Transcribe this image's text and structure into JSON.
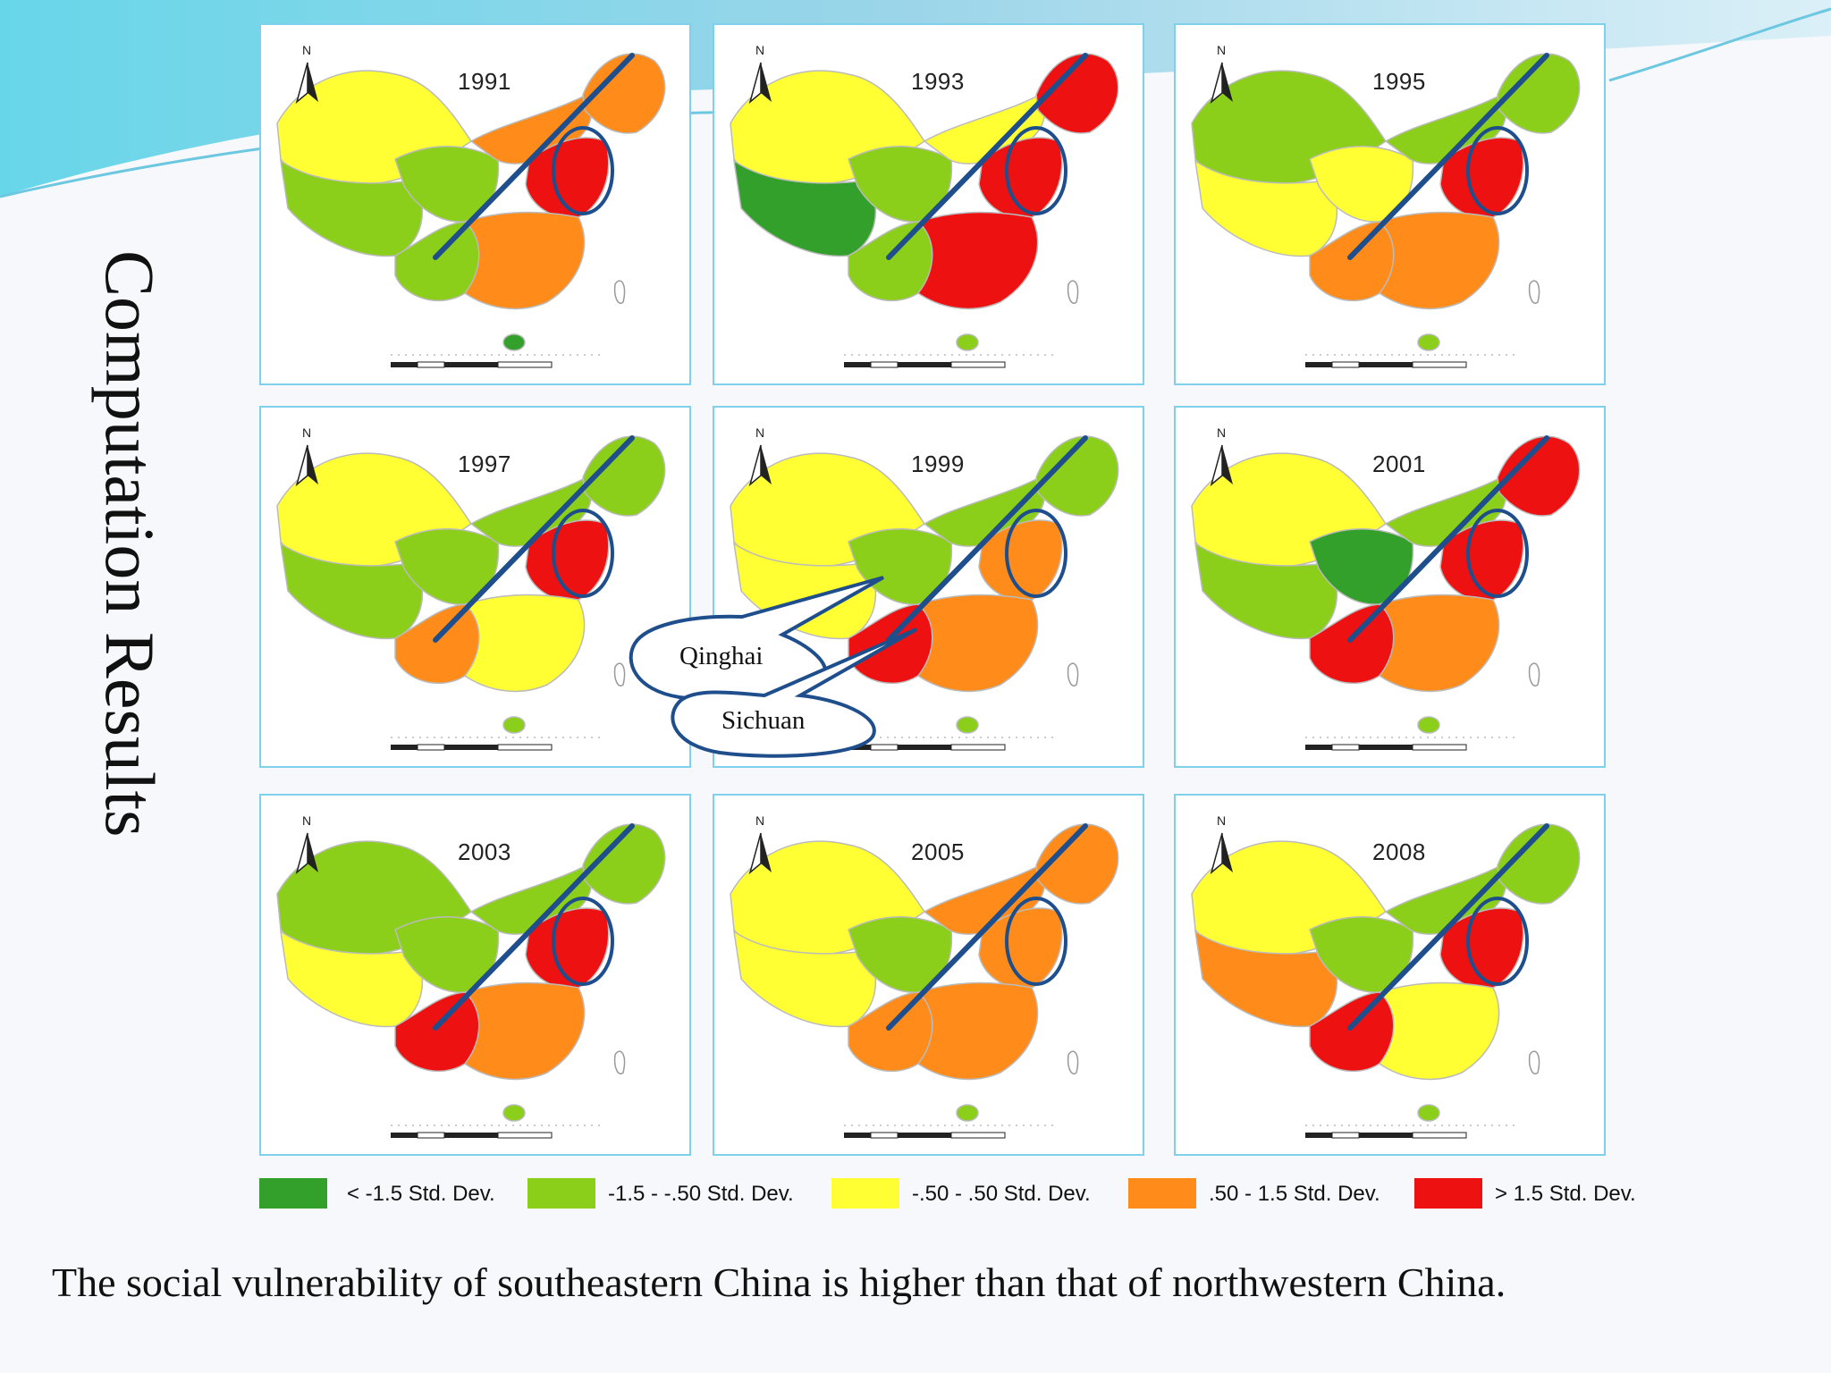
{
  "slide": {
    "title": "Computation Results",
    "caption": "The social vulnerability of southeastern China is higher than that of northwestern China."
  },
  "map_panels": [
    {
      "year": "1991",
      "north": "N"
    },
    {
      "year": "1993",
      "north": "N"
    },
    {
      "year": "1995",
      "north": "N"
    },
    {
      "year": "1997",
      "north": "N"
    },
    {
      "year": "1999",
      "north": "N"
    },
    {
      "year": "2001",
      "north": "N"
    },
    {
      "year": "2003",
      "north": "N"
    },
    {
      "year": "2005",
      "north": "N"
    },
    {
      "year": "2008",
      "north": "N"
    }
  ],
  "callouts": {
    "qinghai": "Qinghai",
    "sichuan": "Sichuan"
  },
  "legend": [
    {
      "label": "< -1.5 Std. Dev.",
      "color": "#33a02c"
    },
    {
      "label": "-1.5 - -.50 Std. Dev.",
      "color": "#8ccf1a"
    },
    {
      "label": "-.50 - .50 Std. Dev.",
      "color": "#ffff33"
    },
    {
      "label": ".50 - 1.5 Std. Dev.",
      "color": "#ff8c1a"
    },
    {
      "label": "> 1.5 Std. Dev.",
      "color": "#ee1111"
    }
  ],
  "colors": {
    "panel_border": "#7fd0ea",
    "divider_line": "#1f4e8c",
    "ellipse": "#1f4e8c"
  }
}
